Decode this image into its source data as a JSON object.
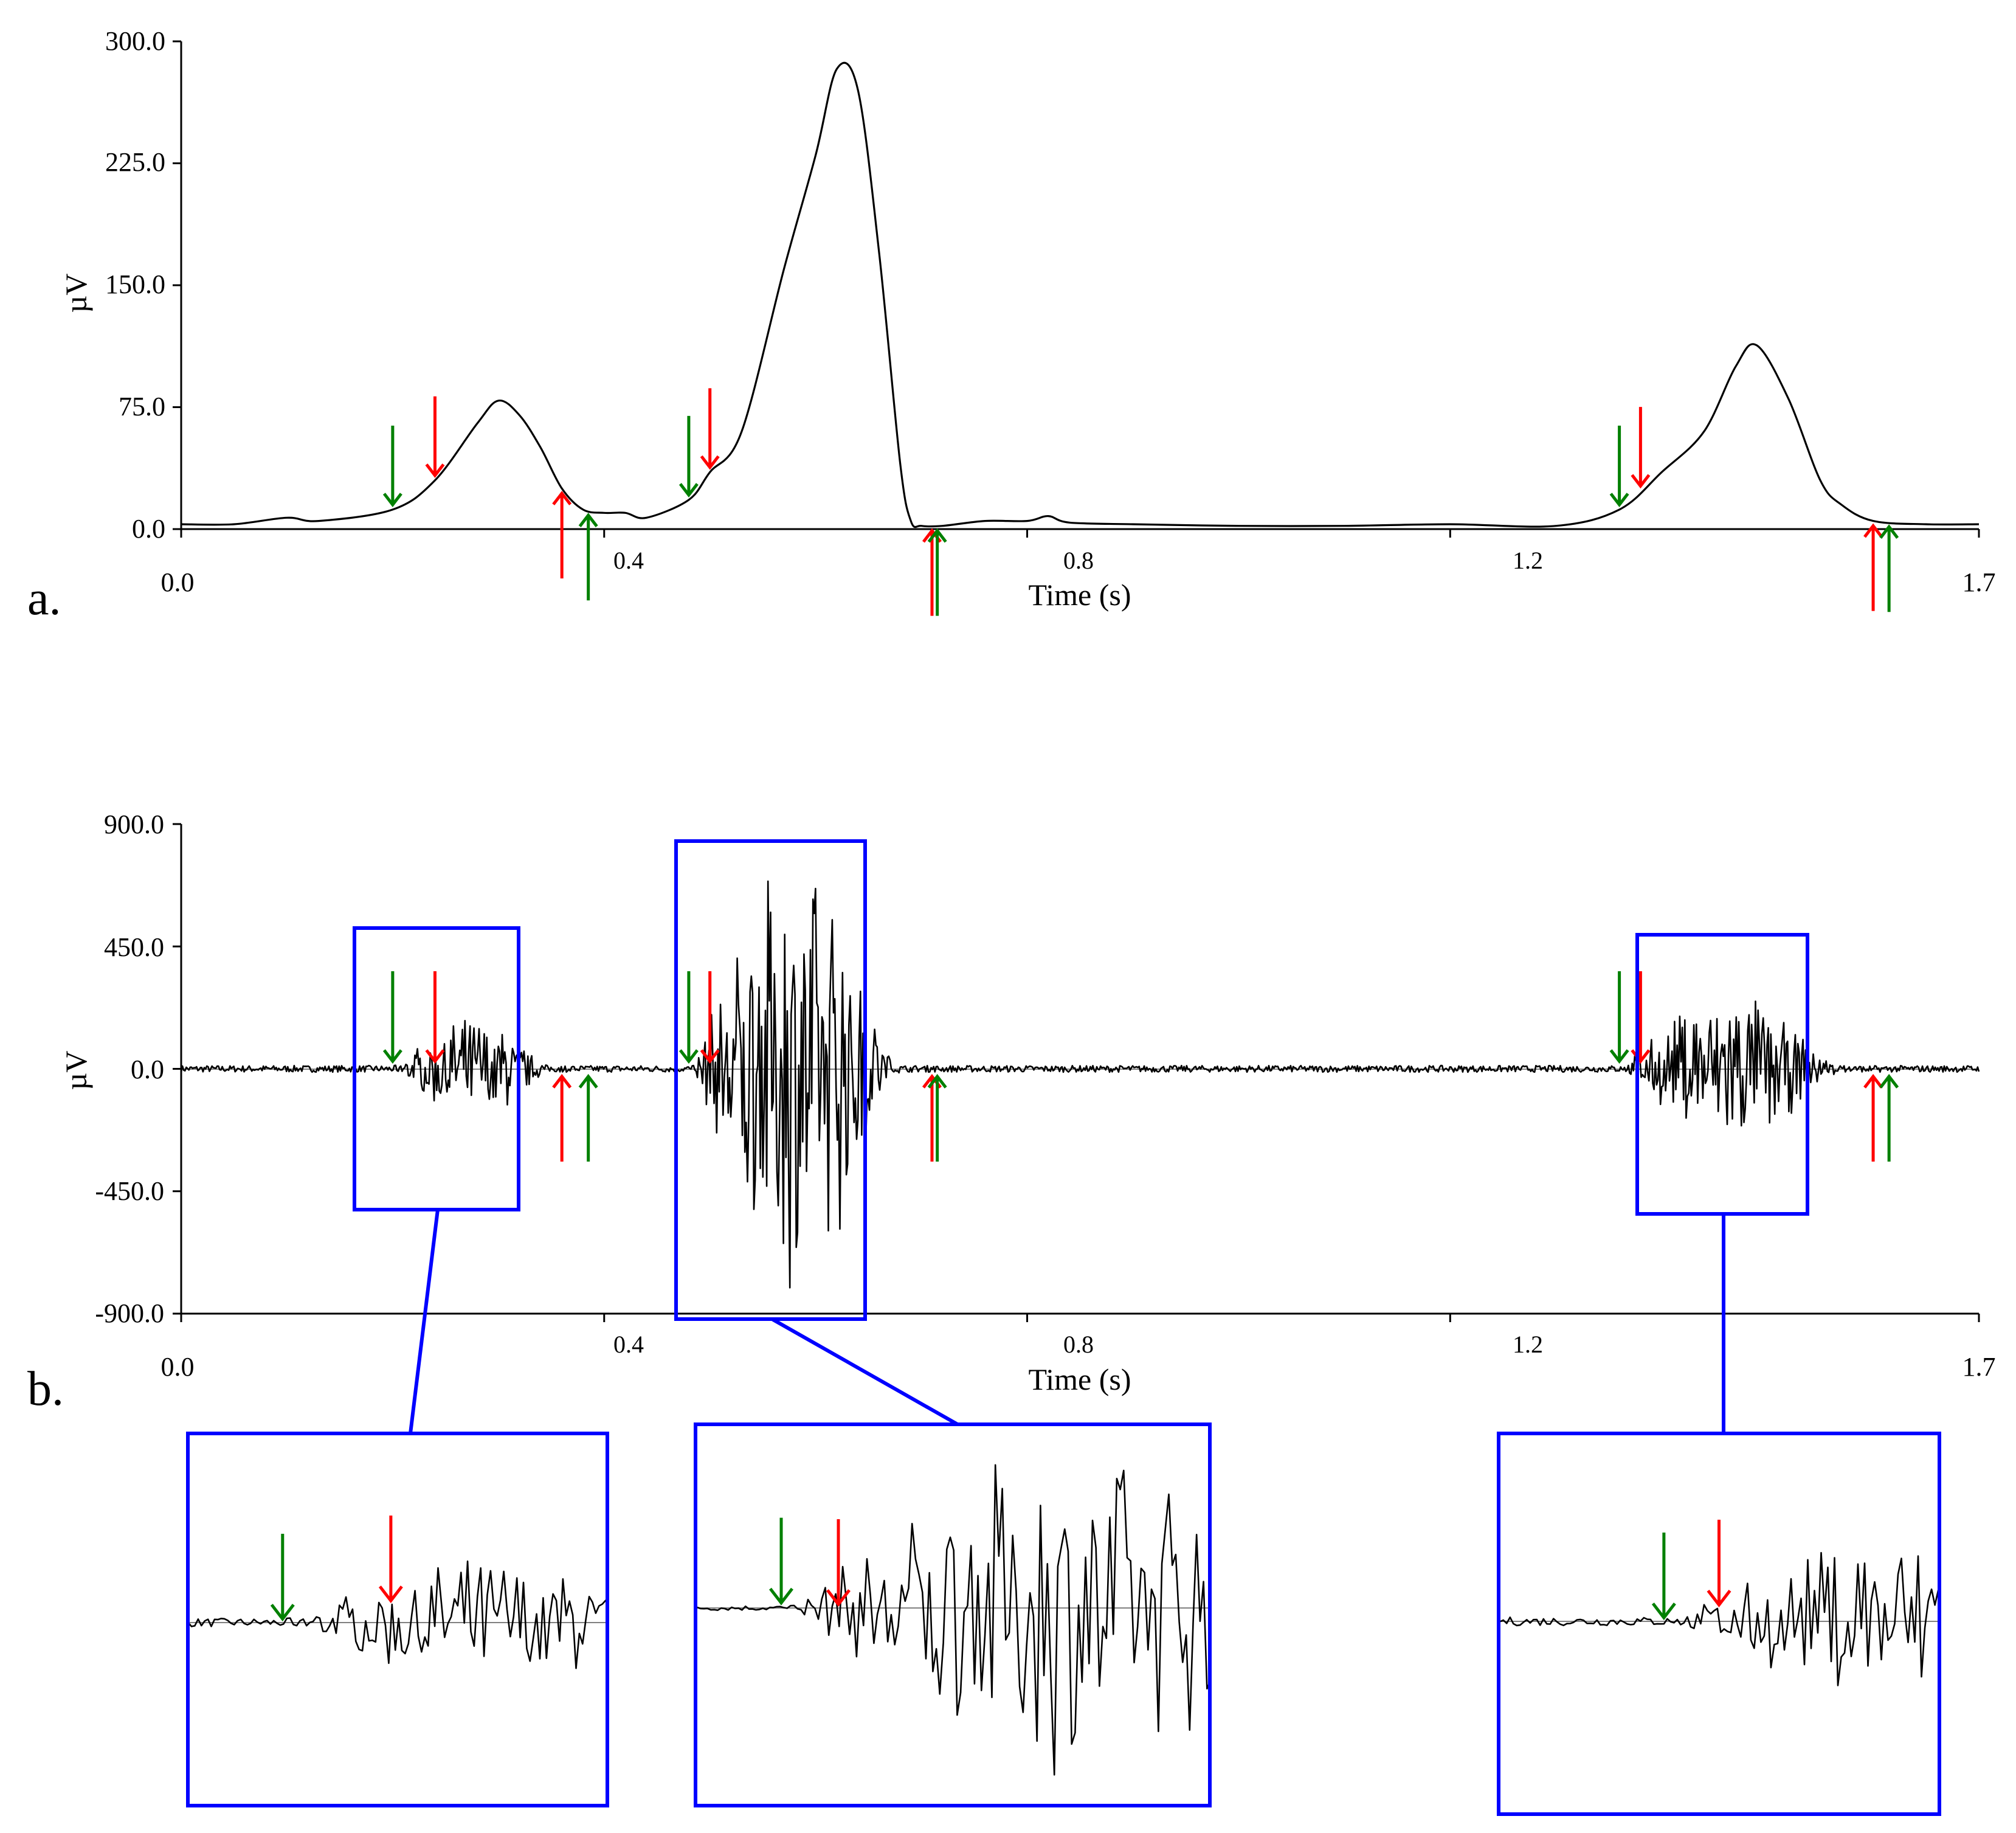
{
  "figure": {
    "panels": [
      {
        "id": "a",
        "label": "a."
      },
      {
        "id": "b",
        "label": "b."
      }
    ]
  },
  "colors": {
    "signal": "#000000",
    "onset_marker": "#008000",
    "offset_marker": "#ff0000",
    "zoom_box": "#0000ff",
    "baseline": "#808080"
  },
  "chart_data": [
    {
      "panel": "a",
      "type": "line",
      "title": "",
      "xlabel": "Time (s)",
      "ylabel": "µV",
      "xlim": [
        0.0,
        1.7
      ],
      "ylim": [
        0.0,
        300.0
      ],
      "x_ticks": [
        "0.0",
        "0.4",
        "0.8",
        "1.2",
        "1.7"
      ],
      "y_ticks": [
        "0.0",
        "75.0",
        "150.0",
        "225.0",
        "300.0"
      ],
      "grid": false,
      "series": [
        {
          "x": [
            0.0,
            0.05,
            0.1,
            0.13,
            0.2,
            0.24,
            0.28,
            0.3,
            0.32,
            0.34,
            0.36,
            0.38,
            0.4,
            0.42,
            0.44,
            0.48,
            0.5,
            0.53,
            0.57,
            0.6,
            0.62,
            0.64,
            0.66,
            0.68,
            0.69,
            0.7,
            0.72,
            0.76,
            0.8,
            0.82,
            0.84,
            0.9,
            1.0,
            1.1,
            1.2,
            1.3,
            1.36,
            1.4,
            1.44,
            1.47,
            1.49,
            1.52,
            1.55,
            1.57,
            1.6,
            1.65,
            1.7
          ],
          "y": [
            3,
            3,
            7,
            5,
            12,
            30,
            65,
            79,
            70,
            50,
            25,
            12,
            10,
            10,
            7,
            18,
            35,
            60,
            160,
            230,
            283,
            270,
            170,
            40,
            5,
            2,
            2,
            5,
            5,
            8,
            4,
            3,
            2,
            2,
            3,
            2,
            12,
            35,
            60,
            100,
            113,
            80,
            30,
            15,
            5,
            3,
            3
          ]
        }
      ],
      "markers": [
        {
          "t": 0.2,
          "color": "green",
          "direction": "down"
        },
        {
          "t": 0.24,
          "color": "red",
          "direction": "down"
        },
        {
          "t": 0.36,
          "color": "red",
          "direction": "up"
        },
        {
          "t": 0.385,
          "color": "green",
          "direction": "up"
        },
        {
          "t": 0.48,
          "color": "green",
          "direction": "down"
        },
        {
          "t": 0.5,
          "color": "red",
          "direction": "down"
        },
        {
          "t": 0.71,
          "color": "red",
          "direction": "up"
        },
        {
          "t": 0.715,
          "color": "green",
          "direction": "up"
        },
        {
          "t": 1.36,
          "color": "green",
          "direction": "down"
        },
        {
          "t": 1.38,
          "color": "red",
          "direction": "down"
        },
        {
          "t": 1.6,
          "color": "red",
          "direction": "up"
        },
        {
          "t": 1.615,
          "color": "green",
          "direction": "up"
        }
      ]
    },
    {
      "panel": "b",
      "type": "line",
      "title": "",
      "xlabel": "Time (s)",
      "ylabel": "µV",
      "xlim": [
        0.0,
        1.7
      ],
      "ylim": [
        -900.0,
        900.0
      ],
      "x_ticks": [
        "0.0",
        "0.4",
        "0.8",
        "1.2",
        "1.7"
      ],
      "y_ticks": [
        "-900.0",
        "-450.0",
        "0.0",
        "450.0",
        "900.0"
      ],
      "grid": false,
      "series": [
        {
          "bursts": [
            {
              "start": 0.2,
              "end": 0.37,
              "amplitude": 200
            },
            {
              "start": 0.48,
              "end": 0.71,
              "amplitude": 850
            },
            {
              "start": 1.36,
              "end": 1.6,
              "amplitude": 300
            }
          ],
          "baseline_noise": 12
        }
      ],
      "markers": [
        {
          "t": 0.2,
          "color": "green",
          "direction": "down"
        },
        {
          "t": 0.24,
          "color": "red",
          "direction": "down"
        },
        {
          "t": 0.36,
          "color": "red",
          "direction": "up"
        },
        {
          "t": 0.385,
          "color": "green",
          "direction": "up"
        },
        {
          "t": 0.48,
          "color": "green",
          "direction": "down"
        },
        {
          "t": 0.5,
          "color": "red",
          "direction": "down"
        },
        {
          "t": 0.71,
          "color": "red",
          "direction": "up"
        },
        {
          "t": 0.715,
          "color": "green",
          "direction": "up"
        },
        {
          "t": 1.36,
          "color": "green",
          "direction": "down"
        },
        {
          "t": 1.38,
          "color": "red",
          "direction": "down"
        },
        {
          "t": 1.6,
          "color": "red",
          "direction": "up"
        },
        {
          "t": 1.615,
          "color": "green",
          "direction": "up"
        }
      ],
      "zoom_regions": [
        {
          "t_start": 0.165,
          "t_end": 0.32,
          "v_top": 520,
          "v_bottom": -520
        },
        {
          "t_start": 0.45,
          "t_end": 0.63,
          "v_top": 860,
          "v_bottom": -920
        },
        {
          "t_start": 1.3,
          "t_end": 1.46,
          "v_top": 510,
          "v_bottom": -530
        }
      ]
    }
  ]
}
